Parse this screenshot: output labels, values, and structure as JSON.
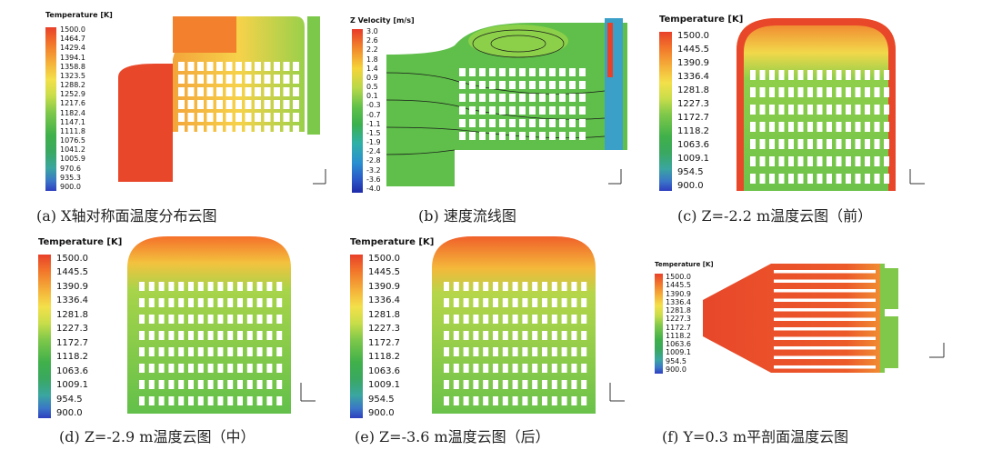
{
  "panels": {
    "a": {
      "caption": "(a) X轴对称面温度分布云图",
      "colorbar_title": "Temperature [K]",
      "ticks": [
        "1500.0",
        "1464.7",
        "1429.4",
        "1394.1",
        "1358.8",
        "1323.5",
        "1288.2",
        "1252.9",
        "1217.6",
        "1182.4",
        "1147.1",
        "1111.8",
        "1076.5",
        "1041.2",
        "1005.9",
        "970.6",
        "935.3",
        "900.0"
      ]
    },
    "b": {
      "caption": "(b) 速度流线图",
      "colorbar_title": "Z Velocity [m/s]",
      "ticks": [
        "3.0",
        "2.6",
        "2.2",
        "1.8",
        "1.4",
        "0.9",
        "0.5",
        "0.1",
        "-0.3",
        "-0.7",
        "-1.1",
        "-1.5",
        "-1.9",
        "-2.4",
        "-2.8",
        "-3.2",
        "-3.6",
        "-4.0"
      ]
    },
    "c": {
      "caption": "(c) Z=-2.2 m温度云图（前）",
      "colorbar_title": "Temperature [K]",
      "ticks": [
        "1500.0",
        "1445.5",
        "1390.9",
        "1336.4",
        "1281.8",
        "1227.3",
        "1172.7",
        "1118.2",
        "1063.6",
        "1009.1",
        "954.5",
        "900.0"
      ]
    },
    "d": {
      "caption": "(d) Z=-2.9 m温度云图（中）",
      "colorbar_title": "Temperature [K]",
      "ticks": [
        "1500.0",
        "1445.5",
        "1390.9",
        "1336.4",
        "1281.8",
        "1227.3",
        "1172.7",
        "1118.2",
        "1063.6",
        "1009.1",
        "954.5",
        "900.0"
      ]
    },
    "e": {
      "caption": "(e) Z=-3.6 m温度云图（后）",
      "colorbar_title": "Temperature [K]",
      "ticks": [
        "1500.0",
        "1445.5",
        "1390.9",
        "1336.4",
        "1281.8",
        "1227.3",
        "1172.7",
        "1118.2",
        "1063.6",
        "1009.1",
        "954.5",
        "900.0"
      ]
    },
    "f": {
      "caption": "(f) Y=0.3 m平剖面温度云图",
      "colorbar_title": "Temperature [K]",
      "ticks": [
        "1500.0",
        "1445.5",
        "1390.9",
        "1336.4",
        "1281.8",
        "1227.3",
        "1172.7",
        "1118.2",
        "1063.6",
        "1009.1",
        "954.5",
        "900.0"
      ]
    }
  },
  "axis_labels": {
    "z": "z",
    "y": "y",
    "x": "x"
  },
  "colors": {
    "hot": "#e8412a",
    "warm": "#f5b23a",
    "mid": "#6fc24a",
    "cool": "#3a76c8",
    "slot": "#ffffff"
  }
}
